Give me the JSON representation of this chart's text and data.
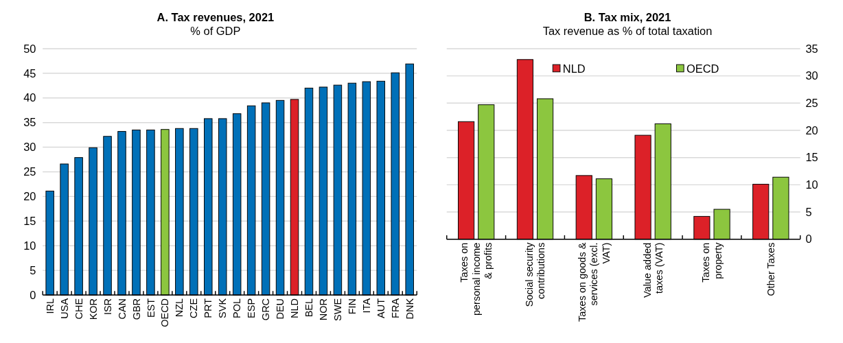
{
  "chart_data": [
    {
      "type": "bar",
      "title": "A. Tax revenues, 2021",
      "subtitle": "% of GDP",
      "categories": [
        "IRL",
        "USA",
        "CHE",
        "KOR",
        "ISR",
        "CAN",
        "GBR",
        "EST",
        "OECD",
        "NZL",
        "CZE",
        "PRT",
        "SVK",
        "POL",
        "ESP",
        "GRC",
        "DEU",
        "NLD",
        "BEL",
        "NOR",
        "SWE",
        "FIN",
        "ITA",
        "AUT",
        "FRA",
        "DNK"
      ],
      "values": [
        21.1,
        26.6,
        27.9,
        29.9,
        32.2,
        33.2,
        33.5,
        33.5,
        33.6,
        33.8,
        33.8,
        35.8,
        35.8,
        36.8,
        38.4,
        39.0,
        39.5,
        39.7,
        42.0,
        42.2,
        42.6,
        43.0,
        43.3,
        43.4,
        45.1,
        46.9
      ],
      "colors": [
        "#0070b8",
        "#0070b8",
        "#0070b8",
        "#0070b8",
        "#0070b8",
        "#0070b8",
        "#0070b8",
        "#0070b8",
        "#8cc63f",
        "#0070b8",
        "#0070b8",
        "#0070b8",
        "#0070b8",
        "#0070b8",
        "#0070b8",
        "#0070b8",
        "#0070b8",
        "#dc2128",
        "#0070b8",
        "#0070b8",
        "#0070b8",
        "#0070b8",
        "#0070b8",
        "#0070b8",
        "#0070b8",
        "#0070b8"
      ],
      "ylim": [
        0,
        50
      ],
      "yticks": [
        0,
        5,
        10,
        15,
        20,
        25,
        30,
        35,
        40,
        45,
        50
      ],
      "grid": "y"
    },
    {
      "type": "bar",
      "title": "B. Tax mix, 2021",
      "subtitle": "Tax revenue as % of total taxation",
      "categories": [
        "Taxes on personal income & profits",
        "Social security contributions",
        "Taxes on goods & services (excl. VAT)",
        "Value added taxes (VAT)",
        "Taxes on property",
        "Other Taxes"
      ],
      "series": [
        {
          "name": "NLD",
          "color": "#dc2128",
          "axis": "y2",
          "values": [
            21.6,
            33.0,
            11.7,
            19.1,
            4.2,
            10.1
          ]
        },
        {
          "name": "OECD",
          "color": "#8cc63f",
          "axis": "y2",
          "values": [
            24.7,
            25.8,
            11.1,
            21.2,
            5.5,
            11.4
          ]
        }
      ],
      "y2lim": [
        0,
        35
      ],
      "y2ticks": [
        0,
        5,
        10,
        15,
        20,
        25,
        30,
        35
      ],
      "grid": "y",
      "legend": "top"
    }
  ]
}
